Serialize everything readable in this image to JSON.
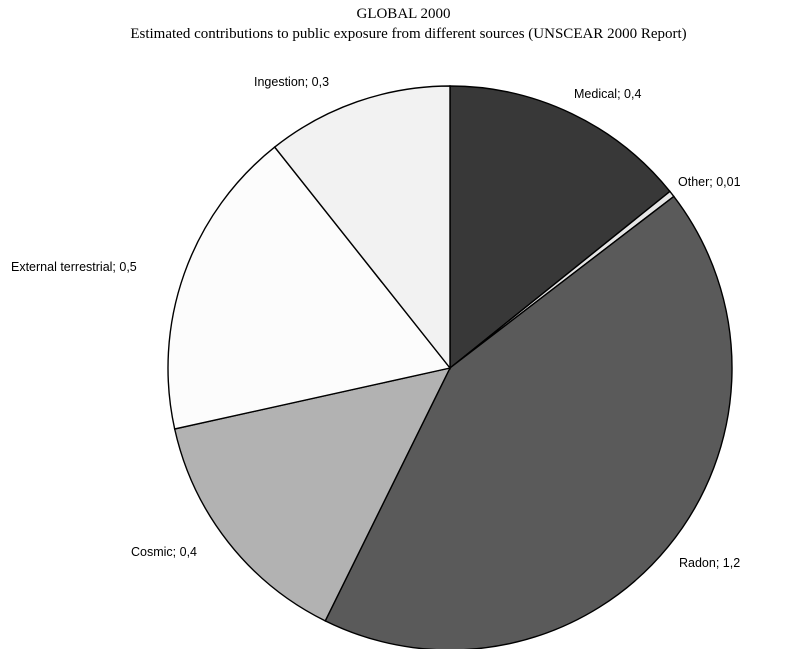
{
  "chart_data": {
    "type": "pie",
    "title": "GLOBAL 2000",
    "subtitle": "Estimated contributions to public exposure from different sources (UNSCEAR 2000 Report)",
    "slices": [
      {
        "label": "Medical",
        "value": 0.4,
        "display": "Medical; 0,4",
        "color": "#383838"
      },
      {
        "label": "Other",
        "value": 0.01,
        "display": "Other; 0,01",
        "color": "#e6e6e6"
      },
      {
        "label": "Radon",
        "value": 1.2,
        "display": "Radon; 1,2",
        "color": "#5a5a5a"
      },
      {
        "label": "Cosmic",
        "value": 0.4,
        "display": "Cosmic; 0,4",
        "color": "#b2b2b2"
      },
      {
        "label": "External terrestrial",
        "value": 0.5,
        "display": "External terrestrial; 0,5",
        "color": "#fcfcfc"
      },
      {
        "label": "Ingestion",
        "value": 0.3,
        "display": "Ingestion; 0,3",
        "color": "#f2f2f2"
      }
    ],
    "start_angle": "12 o'clock",
    "direction": "clockwise",
    "legend": "none"
  }
}
